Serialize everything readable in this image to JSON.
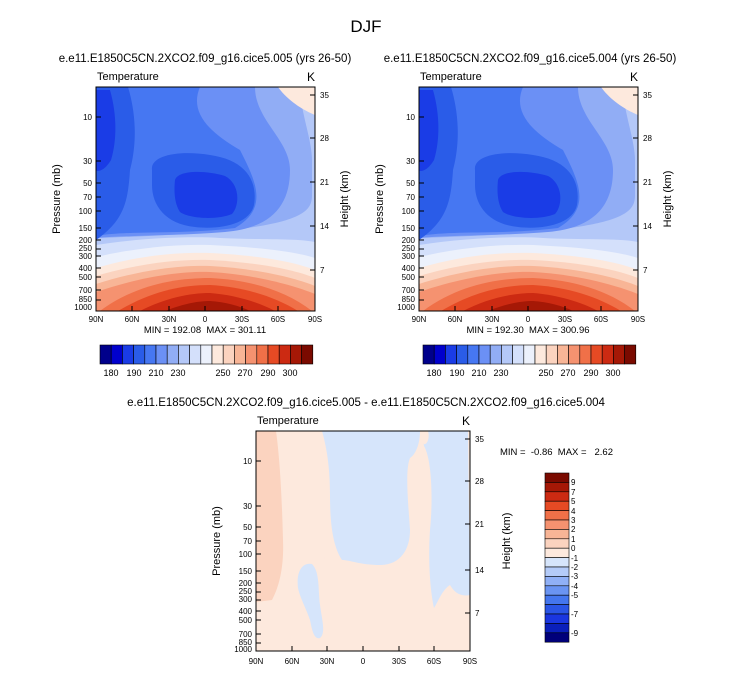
{
  "figure_title": "DJF",
  "colors": {
    "temp_levels": [
      "#00008b",
      "#0000cd",
      "#1a3ce6",
      "#2a5ce8",
      "#4677f2",
      "#6b90f5",
      "#91adf5",
      "#b4c8f8",
      "#d4e0fb",
      "#ecf1fc",
      "#fde9dd",
      "#fbd3bf",
      "#f8b596",
      "#f59270",
      "#f07048",
      "#e64a24",
      "#cc2a12",
      "#a51806",
      "#7a0a00"
    ],
    "diff_levels": [
      "#00007a",
      "#0a1fbb",
      "#1a36e0",
      "#2a55e6",
      "#4476ee",
      "#6a94f2",
      "#90b0f6",
      "#b4cbf8",
      "#d6e5fb",
      "#fde9dd",
      "#fbd3bf",
      "#f8b596",
      "#f59270",
      "#f07048",
      "#e64a24",
      "#cc2a12",
      "#a51806",
      "#7a0a00"
    ]
  },
  "chart_data": [
    {
      "type": "contour",
      "title": "e.e11.E1850C5CN.2XCO2.f09_g16.cice5.005 (yrs 26-50)",
      "left_label": "Temperature",
      "right_label": "K",
      "ylabel": "Pressure (mb)",
      "y2label": "Height (km)",
      "x_ticks": [
        "90N",
        "60N",
        "30N",
        "0",
        "30S",
        "60S",
        "90S"
      ],
      "y_ticks": [
        "10",
        "30",
        "50",
        "70",
        "100",
        "150",
        "200",
        "250",
        "300",
        "400",
        "500",
        "700",
        "850",
        "1000"
      ],
      "y2_ticks": [
        "35",
        "28",
        "21",
        "14",
        "7"
      ],
      "stats": "MIN = 192.08  MAX = 301.11",
      "colorbar_labels": [
        "180",
        "190",
        "210",
        "230",
        "250",
        "270",
        "290",
        "300"
      ]
    },
    {
      "type": "contour",
      "title": "e.e11.E1850C5CN.2XCO2.f09_g16.cice5.004 (yrs 26-50)",
      "left_label": "Temperature",
      "right_label": "K",
      "ylabel": "Pressure (mb)",
      "y2label": "Height (km)",
      "x_ticks": [
        "90N",
        "60N",
        "30N",
        "0",
        "30S",
        "60S",
        "90S"
      ],
      "y_ticks": [
        "10",
        "30",
        "50",
        "70",
        "100",
        "150",
        "200",
        "250",
        "300",
        "400",
        "500",
        "700",
        "850",
        "1000"
      ],
      "y2_ticks": [
        "35",
        "28",
        "21",
        "14",
        "7"
      ],
      "stats": "MIN = 192.30  MAX = 300.96",
      "colorbar_labels": [
        "180",
        "190",
        "210",
        "230",
        "250",
        "270",
        "290",
        "300"
      ]
    },
    {
      "type": "contour",
      "title": "e.e11.E1850C5CN.2XCO2.f09_g16.cice5.005 - e.e11.E1850C5CN.2XCO2.f09_g16.cice5.004",
      "left_label": "Temperature",
      "right_label": "K",
      "ylabel": "Pressure (mb)",
      "y2label": "Height (km)",
      "x_ticks": [
        "90N",
        "60N",
        "30N",
        "0",
        "30S",
        "60S",
        "90S"
      ],
      "y_ticks": [
        "10",
        "30",
        "50",
        "70",
        "100",
        "150",
        "200",
        "250",
        "300",
        "400",
        "500",
        "700",
        "850",
        "1000"
      ],
      "y2_ticks": [
        "35",
        "28",
        "21",
        "14",
        "7"
      ],
      "stats": "MIN =  -0.86  MAX =   2.62",
      "colorbar_labels": [
        "9",
        "7",
        "5",
        "4",
        "3",
        "2",
        "1",
        "0",
        "-1",
        "-2",
        "-3",
        "-4",
        "-5",
        "-7",
        "-9"
      ]
    }
  ]
}
